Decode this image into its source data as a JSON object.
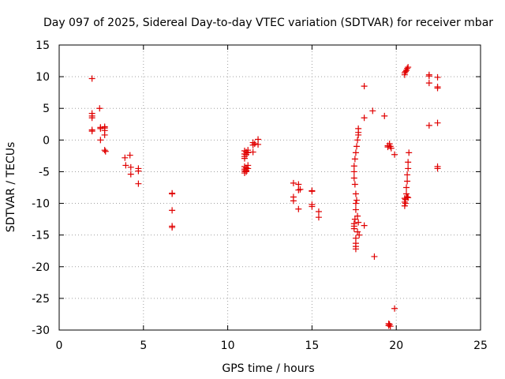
{
  "chart_data": {
    "type": "scatter",
    "title": "Day 097 of 2025, Sidereal Day-to-day VTEC variation (SDTVAR) for receiver mbar",
    "xlabel": "GPS time / hours",
    "ylabel": "SDTVAR / TECUs",
    "xlim": [
      0,
      25
    ],
    "ylim": [
      -30,
      15
    ],
    "xticks": [
      0,
      5,
      10,
      15,
      20,
      25
    ],
    "yticks": [
      -30,
      -25,
      -20,
      -15,
      -10,
      -5,
      0,
      5,
      10,
      15
    ],
    "grid": true,
    "marker": "+",
    "color": "#e00000",
    "series": [
      {
        "name": "SDTVAR",
        "points": [
          [
            1.95,
            9.7
          ],
          [
            1.95,
            4.2
          ],
          [
            1.95,
            3.8
          ],
          [
            1.95,
            3.5
          ],
          [
            1.95,
            1.6
          ],
          [
            1.95,
            1.4
          ],
          [
            2.4,
            5.0
          ],
          [
            2.45,
            2.0
          ],
          [
            2.45,
            1.8
          ],
          [
            2.45,
            0.0
          ],
          [
            2.7,
            2.1
          ],
          [
            2.7,
            1.9
          ],
          [
            2.7,
            1.5
          ],
          [
            2.7,
            0.8
          ],
          [
            2.7,
            -1.6
          ],
          [
            2.75,
            -1.8
          ],
          [
            3.9,
            -2.8
          ],
          [
            3.95,
            -4.0
          ],
          [
            4.2,
            -2.4
          ],
          [
            4.25,
            -4.3
          ],
          [
            4.25,
            -5.4
          ],
          [
            4.7,
            -4.5
          ],
          [
            4.7,
            -4.9
          ],
          [
            4.7,
            -6.9
          ],
          [
            6.7,
            -8.5
          ],
          [
            6.7,
            -8.4
          ],
          [
            6.7,
            -11.1
          ],
          [
            6.7,
            -13.6
          ],
          [
            6.7,
            -13.8
          ],
          [
            11.0,
            -1.7
          ],
          [
            11.0,
            -2.2
          ],
          [
            11.0,
            -2.6
          ],
          [
            11.0,
            -2.9
          ],
          [
            11.0,
            -4.2
          ],
          [
            11.0,
            -4.6
          ],
          [
            11.0,
            -4.9
          ],
          [
            11.0,
            -5.2
          ],
          [
            11.1,
            -1.9
          ],
          [
            11.1,
            -2.3
          ],
          [
            11.1,
            -4.4
          ],
          [
            11.1,
            -4.8
          ],
          [
            11.1,
            -5.0
          ],
          [
            11.2,
            -1.6
          ],
          [
            11.2,
            -2.0
          ],
          [
            11.2,
            -4.0
          ],
          [
            11.2,
            -4.5
          ],
          [
            11.5,
            -0.8
          ],
          [
            11.5,
            -0.4
          ],
          [
            11.5,
            -1.9
          ],
          [
            11.6,
            -0.6
          ],
          [
            11.8,
            0.1
          ],
          [
            11.8,
            -0.7
          ],
          [
            13.9,
            -6.8
          ],
          [
            13.9,
            -9.0
          ],
          [
            13.9,
            -9.6
          ],
          [
            14.2,
            -7.0
          ],
          [
            14.2,
            -7.9
          ],
          [
            14.2,
            -10.9
          ],
          [
            14.3,
            -7.8
          ],
          [
            15.0,
            -8.1
          ],
          [
            15.0,
            -8.0
          ],
          [
            15.0,
            -10.2
          ],
          [
            15.0,
            -10.5
          ],
          [
            15.4,
            -11.3
          ],
          [
            15.4,
            -12.2
          ],
          [
            17.5,
            -4.1
          ],
          [
            17.5,
            -5.0
          ],
          [
            17.5,
            -6.0
          ],
          [
            17.5,
            -13.2
          ],
          [
            17.5,
            -13.6
          ],
          [
            17.5,
            -14.0
          ],
          [
            17.55,
            -3.0
          ],
          [
            17.55,
            -7.0
          ],
          [
            17.55,
            -12.5
          ],
          [
            17.6,
            -2.0
          ],
          [
            17.6,
            -8.5
          ],
          [
            17.6,
            -10.0
          ],
          [
            17.6,
            -11.0
          ],
          [
            17.6,
            -15.5
          ],
          [
            17.6,
            -16.3
          ],
          [
            17.6,
            -16.8
          ],
          [
            17.6,
            -17.2
          ],
          [
            17.65,
            -1.0
          ],
          [
            17.65,
            -9.5
          ],
          [
            17.7,
            0.0
          ],
          [
            17.7,
            -12.0
          ],
          [
            17.7,
            -14.5
          ],
          [
            17.75,
            0.8
          ],
          [
            17.75,
            1.2
          ],
          [
            17.75,
            1.8
          ],
          [
            17.75,
            -13.0
          ],
          [
            17.8,
            -15.0
          ],
          [
            18.1,
            8.5
          ],
          [
            18.1,
            3.5
          ],
          [
            18.1,
            -13.5
          ],
          [
            18.6,
            4.6
          ],
          [
            18.7,
            -18.4
          ],
          [
            19.3,
            3.8
          ],
          [
            19.5,
            -0.9
          ],
          [
            19.5,
            -1.1
          ],
          [
            19.55,
            -29.0
          ],
          [
            19.55,
            -29.3
          ],
          [
            19.6,
            -0.6
          ],
          [
            19.6,
            -29.1
          ],
          [
            19.65,
            -1.0
          ],
          [
            19.65,
            -29.4
          ],
          [
            19.7,
            -1.3
          ],
          [
            19.9,
            -2.3
          ],
          [
            19.9,
            -26.6
          ],
          [
            20.5,
            10.3
          ],
          [
            20.5,
            10.6
          ],
          [
            20.5,
            -9.2
          ],
          [
            20.5,
            -9.8
          ],
          [
            20.5,
            -10.4
          ],
          [
            20.55,
            10.8
          ],
          [
            20.55,
            -9.4
          ],
          [
            20.55,
            -10.0
          ],
          [
            20.6,
            11.0
          ],
          [
            20.6,
            -7.5
          ],
          [
            20.6,
            -8.5
          ],
          [
            20.65,
            11.3
          ],
          [
            20.65,
            -5.5
          ],
          [
            20.65,
            -6.5
          ],
          [
            20.65,
            -9.0
          ],
          [
            20.7,
            11.5
          ],
          [
            20.7,
            -3.5
          ],
          [
            20.7,
            -4.5
          ],
          [
            20.7,
            -9.1
          ],
          [
            20.75,
            -2.0
          ],
          [
            21.95,
            10.3
          ],
          [
            21.95,
            10.1
          ],
          [
            21.95,
            9.0
          ],
          [
            21.95,
            2.3
          ],
          [
            22.45,
            9.9
          ],
          [
            22.45,
            8.4
          ],
          [
            22.45,
            8.2
          ],
          [
            22.45,
            2.7
          ],
          [
            22.45,
            -4.2
          ],
          [
            22.45,
            -4.5
          ]
        ]
      }
    ]
  }
}
